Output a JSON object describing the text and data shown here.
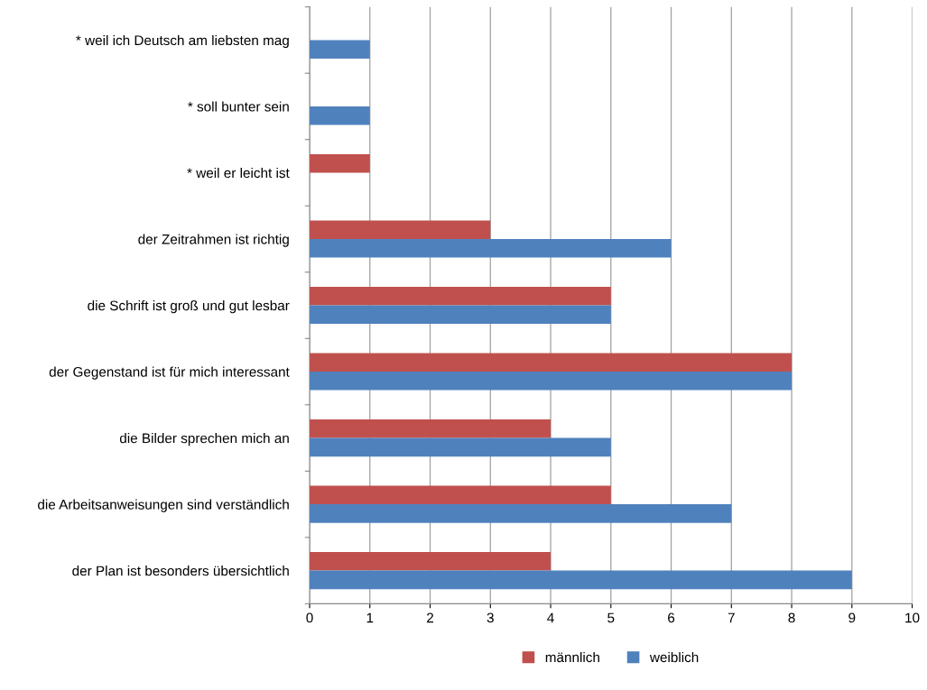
{
  "chart_data": {
    "type": "bar",
    "orientation": "horizontal",
    "categories": [
      "* weil ich Deutsch am liebsten mag",
      "* soll bunter sein",
      "* weil er leicht ist",
      "der Zeitrahmen ist richtig",
      "die Schrift ist groß und gut lesbar",
      "der Gegenstand ist für mich interessant",
      "die Bilder sprechen mich an",
      "die Arbeitsanweisungen sind verständlich",
      "der Plan ist besonders übersichtlich"
    ],
    "series": [
      {
        "name": "männlich",
        "color": "#c0504d",
        "values": [
          null,
          null,
          1,
          3,
          5,
          8,
          4,
          5,
          4
        ]
      },
      {
        "name": "weiblich",
        "color": "#4f81bd",
        "values": [
          1,
          1,
          null,
          6,
          5,
          8,
          5,
          7,
          9
        ]
      }
    ],
    "xlim": [
      0,
      10
    ],
    "xticks": [
      0,
      1,
      2,
      3,
      4,
      5,
      6,
      7,
      8,
      9,
      10
    ],
    "grid": "x",
    "legend": "bottom"
  }
}
